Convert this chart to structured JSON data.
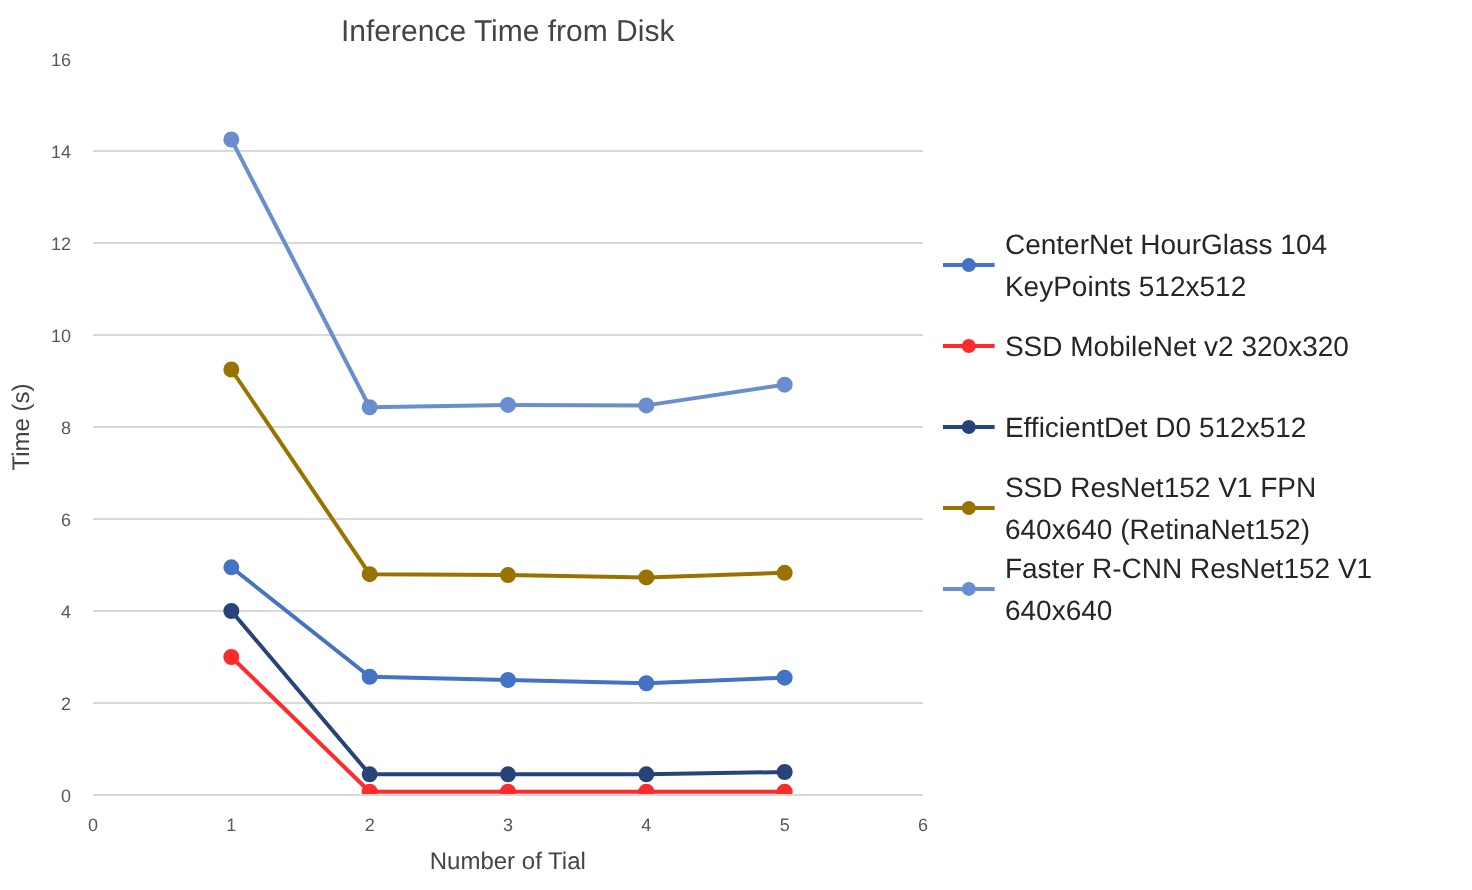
{
  "chart_data": {
    "type": "line",
    "title": "Inference Time from Disk",
    "xlabel": "Number of Tial",
    "ylabel": "Time (s)",
    "x": [
      1,
      2,
      3,
      4,
      5
    ],
    "xlim": [
      0,
      6
    ],
    "xticks": [
      0,
      1,
      2,
      3,
      4,
      5,
      6
    ],
    "ylim": [
      0,
      16
    ],
    "yticks": [
      0,
      2,
      4,
      6,
      8,
      10,
      12,
      14,
      16
    ],
    "grid": "y",
    "legend": "right",
    "marker": "circle",
    "line_style": "solid",
    "series": [
      {
        "name": "CenterNet HourGlass 104 KeyPoints 512x512",
        "color": "#4472c4",
        "values": [
          4.95,
          2.57,
          2.5,
          2.43,
          2.55
        ]
      },
      {
        "name": "SSD MobileNet v2 320x320",
        "color": "#ff2a2a",
        "values": [
          3.0,
          0.07,
          0.07,
          0.07,
          0.07
        ]
      },
      {
        "name": "EfficientDet D0 512x512",
        "color": "#264478",
        "values": [
          4.0,
          0.45,
          0.45,
          0.45,
          0.5
        ]
      },
      {
        "name": "SSD ResNet152 V1 FPN 640x640 (RetinaNet152)",
        "color": "#997300",
        "values": [
          9.25,
          4.8,
          4.78,
          4.73,
          4.83
        ]
      },
      {
        "name": "Faster R-CNN ResNet152 V1 640x640",
        "color": "#698ed0",
        "values": [
          14.25,
          8.43,
          8.48,
          8.47,
          8.92
        ]
      }
    ]
  }
}
